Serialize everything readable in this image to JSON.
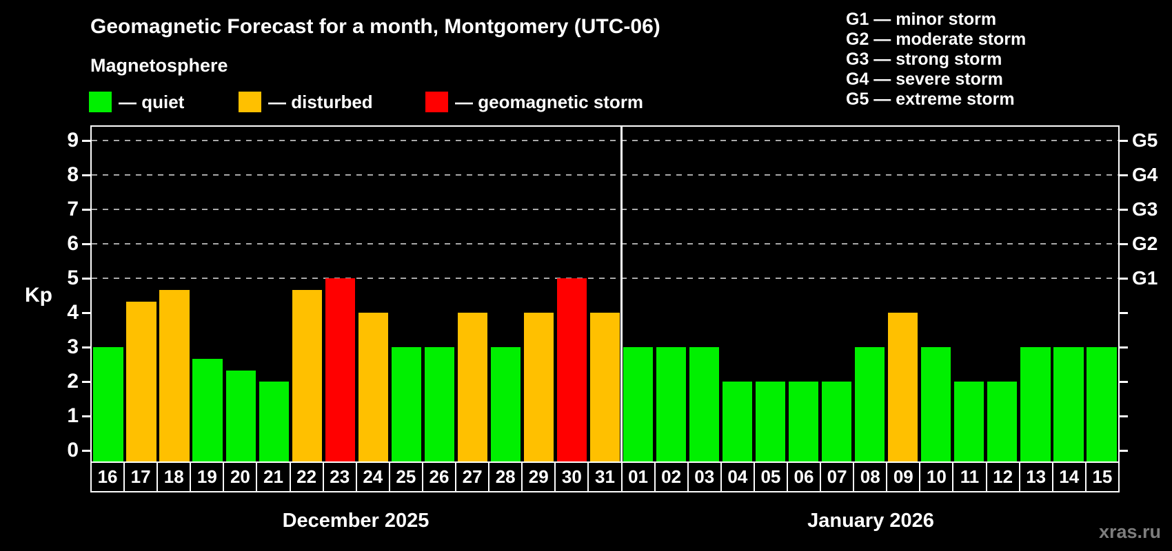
{
  "title": "Geomagnetic Forecast for a month, Montgomery (UTC-06)",
  "subtitle": "Magnetosphere",
  "legend": {
    "items": [
      {
        "status": "quiet",
        "label": "— quiet",
        "color": "#00f000"
      },
      {
        "status": "disturbed",
        "label": "— disturbed",
        "color": "#ffc000"
      },
      {
        "status": "storm",
        "label": "— geomagnetic storm",
        "color": "#ff0000"
      }
    ]
  },
  "g_scale_legend": [
    "G1 — minor storm",
    "G2 — moderate storm",
    "G3 — strong storm",
    "G4 — severe storm",
    "G5 — extreme storm"
  ],
  "watermark": "xras.ru",
  "chart_data": {
    "type": "bar",
    "ylabel": "Kp",
    "ylim": [
      -0.32,
      9.72
    ],
    "yticks": [
      0,
      1,
      2,
      3,
      4,
      5,
      6,
      7,
      8,
      9
    ],
    "gridlines_at": [
      5,
      6,
      7,
      8,
      9
    ],
    "grid": "dashed horizontal at G-storm levels only",
    "legend_position": "top",
    "right_axis_labels": [
      {
        "kp": 5,
        "label": "G1"
      },
      {
        "kp": 6,
        "label": "G2"
      },
      {
        "kp": 7,
        "label": "G3"
      },
      {
        "kp": 8,
        "label": "G4"
      },
      {
        "kp": 9,
        "label": "G5"
      }
    ],
    "groups": [
      {
        "label": "December 2025",
        "days": [
          {
            "day": "16",
            "kp": 3,
            "status": "quiet"
          },
          {
            "day": "17",
            "kp": 4.33,
            "status": "disturbed"
          },
          {
            "day": "18",
            "kp": 4.67,
            "status": "disturbed"
          },
          {
            "day": "19",
            "kp": 2.67,
            "status": "quiet"
          },
          {
            "day": "20",
            "kp": 2.33,
            "status": "quiet"
          },
          {
            "day": "21",
            "kp": 2,
            "status": "quiet"
          },
          {
            "day": "22",
            "kp": 4.67,
            "status": "disturbed"
          },
          {
            "day": "23",
            "kp": 5,
            "status": "storm"
          },
          {
            "day": "24",
            "kp": 4,
            "status": "disturbed"
          },
          {
            "day": "25",
            "kp": 3,
            "status": "quiet"
          },
          {
            "day": "26",
            "kp": 3,
            "status": "quiet"
          },
          {
            "day": "27",
            "kp": 4,
            "status": "disturbed"
          },
          {
            "day": "28",
            "kp": 3,
            "status": "quiet"
          },
          {
            "day": "29",
            "kp": 4,
            "status": "disturbed"
          },
          {
            "day": "30",
            "kp": 5,
            "status": "storm"
          },
          {
            "day": "31",
            "kp": 4,
            "status": "disturbed"
          }
        ]
      },
      {
        "label": "January 2026",
        "days": [
          {
            "day": "01",
            "kp": 3,
            "status": "quiet"
          },
          {
            "day": "02",
            "kp": 3,
            "status": "quiet"
          },
          {
            "day": "03",
            "kp": 3,
            "status": "quiet"
          },
          {
            "day": "04",
            "kp": 2,
            "status": "quiet"
          },
          {
            "day": "05",
            "kp": 2,
            "status": "quiet"
          },
          {
            "day": "06",
            "kp": 2,
            "status": "quiet"
          },
          {
            "day": "07",
            "kp": 2,
            "status": "quiet"
          },
          {
            "day": "08",
            "kp": 3,
            "status": "quiet"
          },
          {
            "day": "09",
            "kp": 4,
            "status": "disturbed"
          },
          {
            "day": "10",
            "kp": 3,
            "status": "quiet"
          },
          {
            "day": "11",
            "kp": 2,
            "status": "quiet"
          },
          {
            "day": "12",
            "kp": 2,
            "status": "quiet"
          },
          {
            "day": "13",
            "kp": 3,
            "status": "quiet"
          },
          {
            "day": "14",
            "kp": 3,
            "status": "quiet"
          },
          {
            "day": "15",
            "kp": 3,
            "status": "quiet"
          }
        ]
      }
    ]
  }
}
